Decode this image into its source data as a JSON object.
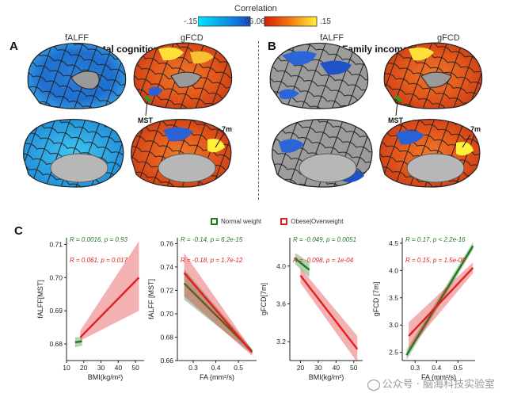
{
  "colorbar": {
    "title": "Correlation",
    "ticks": [
      "-.15",
      "-.06",
      ".06",
      ".15"
    ],
    "colors": {
      "neg_min": "#00e5ff",
      "neg_mid": "#1450d0",
      "pos_mid": "#e03010",
      "pos_max": "#fff23a"
    }
  },
  "panel_a": {
    "letter": "A",
    "title": "Total cognition",
    "left_label": "fALFF",
    "right_label": "gFCD",
    "ann_mst": "MST",
    "ann_7m": "7m"
  },
  "panel_b": {
    "letter": "B",
    "title": "Family income",
    "left_label": "fALFF",
    "right_label": "gFCD",
    "ann_mst": "MST",
    "ann_7m": "7m"
  },
  "panel_c": {
    "letter": "C",
    "legend": {
      "normal": "Normal weight",
      "obese": "Obese|Overweight"
    },
    "colors": {
      "normal": "#1f7a1f",
      "obese": "#e02020"
    }
  },
  "chart_data": [
    {
      "type": "scatter",
      "ylabel": "fALFF[MST]",
      "xlabel": "BMI(kg/m²)",
      "ylim": [
        0.675,
        0.712
      ],
      "xlim": [
        10,
        55
      ],
      "yticks": [
        "0.68",
        "0.69",
        "0.70",
        "0.71"
      ],
      "yticks_val": [
        0.68,
        0.69,
        0.7,
        0.71
      ],
      "xticks": [
        "10",
        "20",
        "30",
        "40",
        "50"
      ],
      "xticks_val": [
        10,
        20,
        30,
        40,
        50
      ],
      "stats": {
        "normal": "R = 0.0016, p = 0.93",
        "obese": "R = 0.061, p = 0.017"
      },
      "series": [
        {
          "name": "Normal weight",
          "x": [
            15,
            19
          ],
          "y": [
            0.6805,
            0.6808
          ],
          "band_lo": [
            0.679,
            0.6795
          ],
          "band_hi": [
            0.682,
            0.682
          ]
        },
        {
          "name": "Obese|Overweight",
          "x": [
            18,
            52
          ],
          "y": [
            0.682,
            0.7
          ],
          "band_lo": [
            0.681,
            0.69
          ],
          "band_hi": [
            0.684,
            0.711
          ]
        }
      ]
    },
    {
      "type": "scatter",
      "ylabel": "fALFF [MST]",
      "xlabel": "FA (mm²/s)",
      "ylim": [
        0.66,
        0.765
      ],
      "xlim": [
        0.23,
        0.58
      ],
      "yticks": [
        "0.66",
        "0.68",
        "0.70",
        "0.72",
        "0.74",
        "0.76"
      ],
      "yticks_val": [
        0.66,
        0.68,
        0.7,
        0.72,
        0.74,
        0.76
      ],
      "xticks": [
        "0.3",
        "0.4",
        "0.5"
      ],
      "xticks_val": [
        0.3,
        0.4,
        0.5
      ],
      "stats": {
        "normal": "R = -0.14, p = 6.2e-15",
        "obese": "R = -0.18, p = 1.7e-12"
      },
      "series": [
        {
          "name": "Normal weight",
          "x": [
            0.26,
            0.56
          ],
          "y": [
            0.726,
            0.668
          ],
          "band_lo": [
            0.712,
            0.666
          ],
          "band_hi": [
            0.738,
            0.67
          ]
        },
        {
          "name": "Obese|Overweight",
          "x": [
            0.26,
            0.56
          ],
          "y": [
            0.735,
            0.667
          ],
          "band_lo": [
            0.715,
            0.664
          ],
          "band_hi": [
            0.752,
            0.669
          ]
        }
      ]
    },
    {
      "type": "scatter",
      "ylabel": "gFCD[7m]",
      "xlabel": "BMI(kg/m²)",
      "ylim": [
        3.0,
        4.3
      ],
      "xlim": [
        14,
        55
      ],
      "yticks": [
        "3.2",
        "3.6",
        "4.0"
      ],
      "yticks_val": [
        3.2,
        3.6,
        4.0
      ],
      "xticks": [
        "20",
        "30",
        "40",
        "50"
      ],
      "xticks_val": [
        20,
        30,
        40,
        50
      ],
      "stats": {
        "normal": "R = -0.049, p = 0.0051",
        "obese": "R = -0.098, p = 1e-04"
      },
      "series": [
        {
          "name": "Normal weight",
          "x": [
            17,
            25
          ],
          "y": [
            4.08,
            3.96
          ],
          "band_lo": [
            4.02,
            3.88
          ],
          "band_hi": [
            4.14,
            4.04
          ]
        },
        {
          "name": "Obese|Overweight",
          "x": [
            20,
            52
          ],
          "y": [
            3.9,
            3.12
          ],
          "band_lo": [
            3.82,
            2.98
          ],
          "band_hi": [
            3.98,
            3.26
          ]
        }
      ]
    },
    {
      "type": "scatter",
      "ylabel": "gFCD [7m]",
      "xlabel": "FA (mm²/s)",
      "ylim": [
        2.35,
        4.6
      ],
      "xlim": [
        0.24,
        0.58
      ],
      "yticks": [
        "2.5",
        "3.0",
        "3.5",
        "4.0",
        "4.5"
      ],
      "yticks_val": [
        2.5,
        3.0,
        3.5,
        4.0,
        4.5
      ],
      "xticks": [
        "0.3",
        "0.4",
        "0.5"
      ],
      "xticks_val": [
        0.3,
        0.4,
        0.5
      ],
      "stats": {
        "normal": "R = 0.17, p < 2.2e-16",
        "obese": "R = 0.15, p = 1.5e-08"
      },
      "series": [
        {
          "name": "Normal weight",
          "x": [
            0.26,
            0.57
          ],
          "y": [
            2.45,
            4.45
          ],
          "band_lo": [
            2.36,
            4.38
          ],
          "band_hi": [
            2.55,
            4.52
          ]
        },
        {
          "name": "Obese|Overweight",
          "x": [
            0.27,
            0.57
          ],
          "y": [
            2.8,
            4.05
          ],
          "band_lo": [
            2.55,
            3.95
          ],
          "band_hi": [
            3.05,
            4.15
          ]
        }
      ]
    }
  ],
  "watermark": {
    "text": "公众号 · 脑海科技实验室"
  }
}
